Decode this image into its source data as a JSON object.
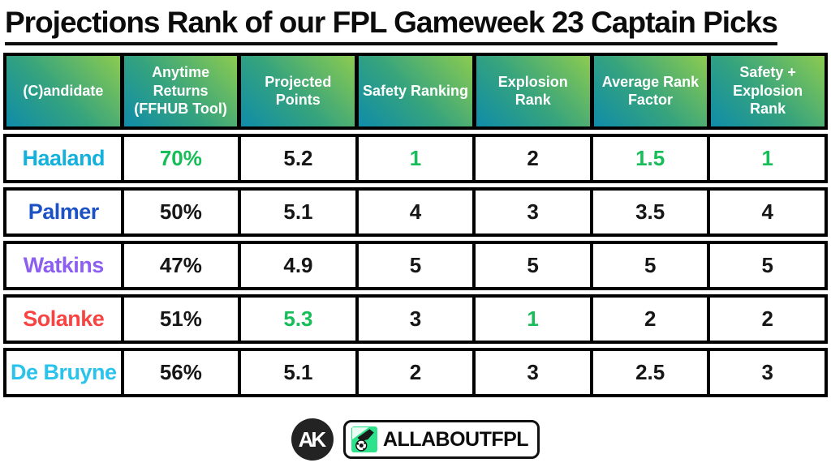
{
  "title": "Projections Rank of our FPL Gameweek 23 Captain Picks",
  "chart_data": {
    "type": "table",
    "title": "Projections Rank of our FPL Gameweek 23 Captain Picks",
    "columns": [
      "(C)andidate",
      "Anytime Returns (FFHUB Tool)",
      "Projected Points",
      "Safety Ranking",
      "Explosion Rank",
      "Average Rank Factor",
      "Safety + Explosion Rank"
    ],
    "rows": [
      [
        "Haaland",
        "70%",
        "5.2",
        "1",
        "2",
        "1.5",
        "1"
      ],
      [
        "Palmer",
        "50%",
        "5.1",
        "4",
        "3",
        "3.5",
        "4"
      ],
      [
        "Watkins",
        "47%",
        "4.9",
        "5",
        "5",
        "5",
        "5"
      ],
      [
        "Solanke",
        "51%",
        "5.3",
        "3",
        "1",
        "2",
        "2"
      ],
      [
        "De Bruyne",
        "56%",
        "5.1",
        "2",
        "3",
        "2.5",
        "3"
      ]
    ]
  },
  "table": {
    "headers": [
      {
        "label": "(C)andidate"
      },
      {
        "label": "Anytime Returns (FFHUB Tool)"
      },
      {
        "label": "Projected Points"
      },
      {
        "label": "Safety Ranking"
      },
      {
        "label": "Explosion Rank"
      },
      {
        "label": "Average Rank Factor"
      },
      {
        "label": "Safety + Explosion Rank"
      }
    ],
    "rows": [
      {
        "cells": [
          {
            "text": "Haaland",
            "color": "#14b1dd"
          },
          {
            "text": "70%",
            "color": "#17bd58"
          },
          {
            "text": "5.2",
            "color": "#161616"
          },
          {
            "text": "1",
            "color": "#17bd58"
          },
          {
            "text": "2",
            "color": "#161616"
          },
          {
            "text": "1.5",
            "color": "#17bd58"
          },
          {
            "text": "1",
            "color": "#17bd58"
          }
        ]
      },
      {
        "cells": [
          {
            "text": "Palmer",
            "color": "#1d52c4"
          },
          {
            "text": "50%",
            "color": "#161616"
          },
          {
            "text": "5.1",
            "color": "#161616"
          },
          {
            "text": "4",
            "color": "#161616"
          },
          {
            "text": "3",
            "color": "#161616"
          },
          {
            "text": "3.5",
            "color": "#161616"
          },
          {
            "text": "4",
            "color": "#161616"
          }
        ]
      },
      {
        "cells": [
          {
            "text": "Watkins",
            "color": "#8d5ff1"
          },
          {
            "text": "47%",
            "color": "#161616"
          },
          {
            "text": "4.9",
            "color": "#161616"
          },
          {
            "text": "5",
            "color": "#161616"
          },
          {
            "text": "5",
            "color": "#161616"
          },
          {
            "text": "5",
            "color": "#161616"
          },
          {
            "text": "5",
            "color": "#161616"
          }
        ]
      },
      {
        "cells": [
          {
            "text": "Solanke",
            "color": "#f94343"
          },
          {
            "text": "51%",
            "color": "#161616"
          },
          {
            "text": "5.3",
            "color": "#17bd58"
          },
          {
            "text": "3",
            "color": "#161616"
          },
          {
            "text": "1",
            "color": "#17bd58"
          },
          {
            "text": "2",
            "color": "#161616"
          },
          {
            "text": "2",
            "color": "#161616"
          }
        ]
      },
      {
        "cells": [
          {
            "text": "De Bruyne",
            "color": "#29c3ec"
          },
          {
            "text": "56%",
            "color": "#161616"
          },
          {
            "text": "5.1",
            "color": "#161616"
          },
          {
            "text": "2",
            "color": "#161616"
          },
          {
            "text": "3",
            "color": "#161616"
          },
          {
            "text": "2.5",
            "color": "#161616"
          },
          {
            "text": "3",
            "color": "#161616"
          }
        ]
      }
    ]
  },
  "footer": {
    "monogram": "AK",
    "brand": "ALLABOUTFPL"
  },
  "colors": {
    "header_gradient_start": "#0f8ca9",
    "header_gradient_end": "#8ccb50",
    "highlight_green": "#17bd58",
    "text_black": "#161616",
    "border_black": "#000000",
    "badge_green": "#2ee28c"
  }
}
